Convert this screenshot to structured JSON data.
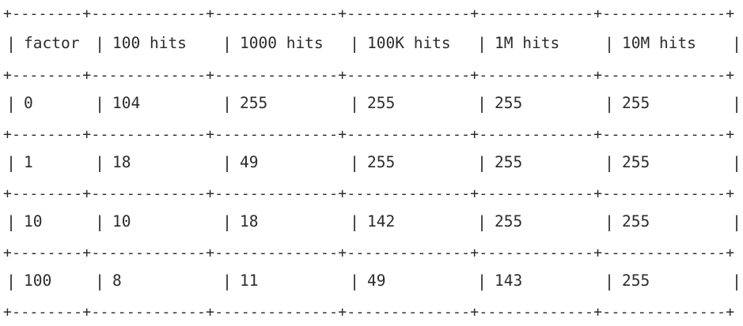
{
  "table": {
    "border_pattern": "+--------+-------------+--------------+--------------+-------------+--------------+",
    "header": [
      "factor",
      "100 hits",
      "1000 hits",
      "100K hits",
      "1M hits",
      "10M hits"
    ],
    "rows": [
      [
        "0",
        "104",
        "255",
        "255",
        "255",
        "255"
      ],
      [
        "1",
        "18",
        "49",
        "255",
        "255",
        "255"
      ],
      [
        "10",
        "10",
        "18",
        "142",
        "255",
        "255"
      ],
      [
        "100",
        "8",
        "11",
        "49",
        "143",
        "255"
      ]
    ]
  }
}
